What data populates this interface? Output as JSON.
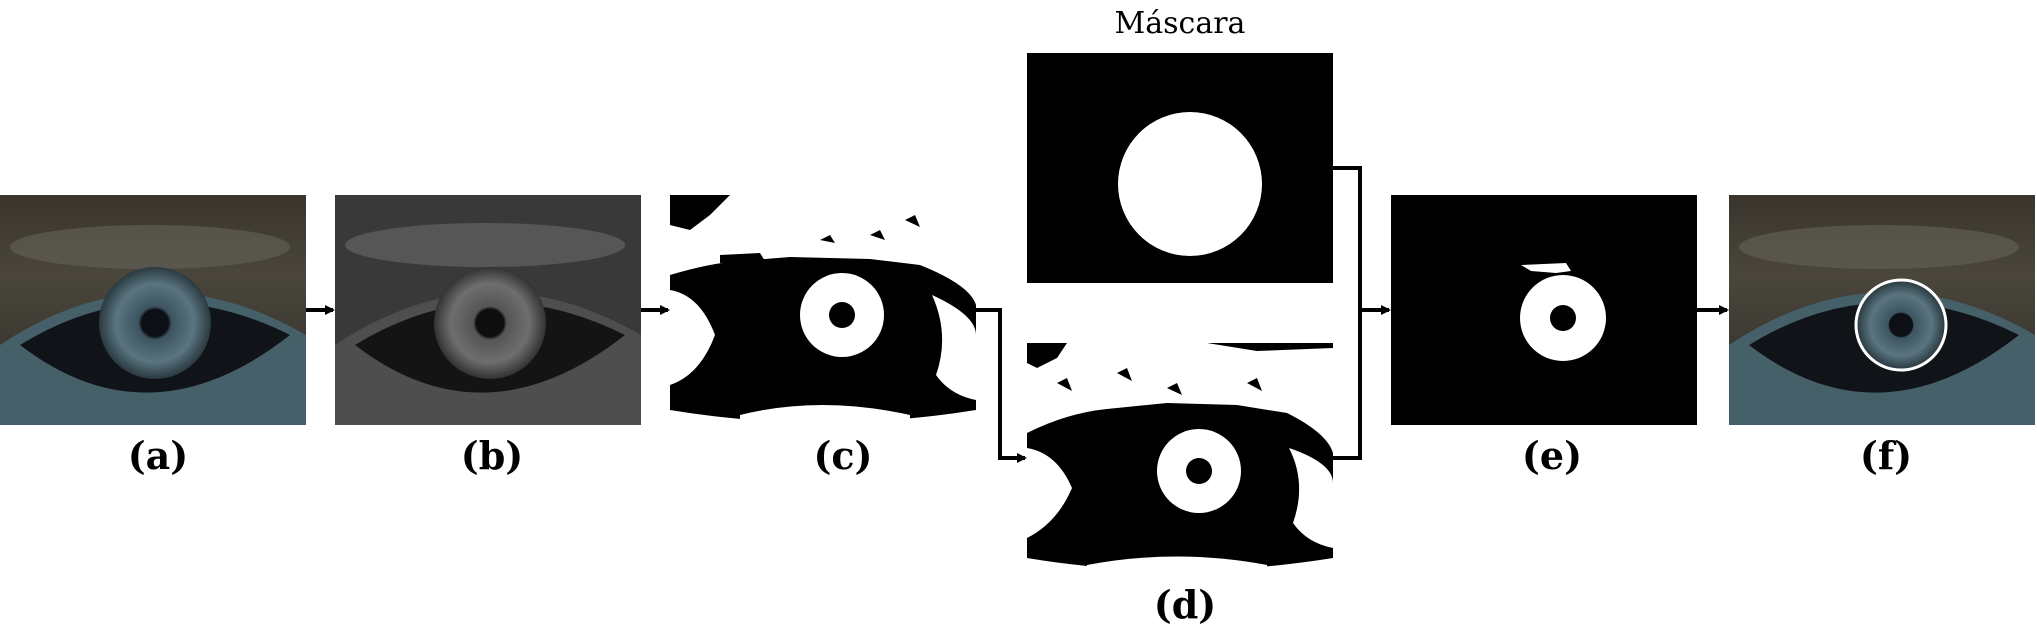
{
  "captions": {
    "a": "(a)",
    "b": "(b)",
    "c": "(c)",
    "d": "(d)",
    "e": "(e)",
    "f": "(f)"
  },
  "mask": {
    "title": "Máscara"
  },
  "colors": {
    "background": "#ffffff",
    "arrow": "#000000",
    "binary_foreground": "#ffffff",
    "binary_background": "#000000",
    "iris_blue": "#4c6470",
    "skin_dark": "#2e2a24",
    "detection_circle": "#ffffff"
  },
  "icons": [
    "eye-photo-color",
    "eye-photo-gray",
    "eye-binary",
    "circular-mask",
    "pupil-iris-segment",
    "iris-detected-circle"
  ]
}
